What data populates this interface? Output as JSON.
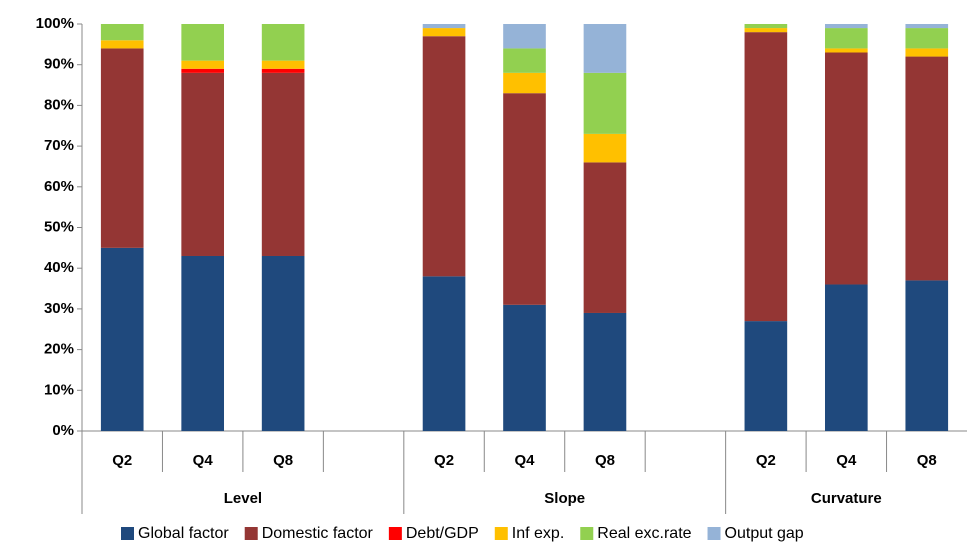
{
  "chart_data": {
    "type": "stacked-bar",
    "categories": [
      "Q2",
      "Q4",
      "Q8",
      null,
      "Q2",
      "Q4",
      "Q8",
      null,
      "Q2",
      "Q4",
      "Q8"
    ],
    "groups": [
      "Level",
      "Slope",
      "Curvature"
    ],
    "ylim": [
      0,
      100
    ],
    "yticks": [
      {
        "value": 0,
        "label": "0%"
      },
      {
        "value": 10,
        "label": "10%"
      },
      {
        "value": 20,
        "label": "20%"
      },
      {
        "value": 30,
        "label": "30%"
      },
      {
        "value": 40,
        "label": "40%"
      },
      {
        "value": 50,
        "label": "50%"
      },
      {
        "value": 60,
        "label": "60%"
      },
      {
        "value": 70,
        "label": "70%"
      },
      {
        "value": 80,
        "label": "80%"
      },
      {
        "value": 90,
        "label": "90%"
      },
      {
        "value": 100,
        "label": "100%"
      }
    ],
    "grid": false,
    "series": [
      {
        "name": "Global factor",
        "color": "#1f497d",
        "values": [
          45,
          43,
          43,
          null,
          38,
          31,
          29,
          null,
          27,
          36,
          37
        ]
      },
      {
        "name": "Domestic factor",
        "color": "#943634",
        "values": [
          49,
          45,
          45,
          null,
          59,
          52,
          37,
          null,
          71,
          57,
          55
        ]
      },
      {
        "name": "Debt/GDP",
        "color": "#ff0000",
        "values": [
          0,
          1,
          1,
          null,
          0,
          0,
          0,
          null,
          0,
          0,
          0
        ]
      },
      {
        "name": "Inf exp.",
        "color": "#ffc000",
        "values": [
          2,
          2,
          2,
          null,
          2,
          5,
          7,
          null,
          1,
          1,
          2
        ]
      },
      {
        "name": "Real exc.rate",
        "color": "#92d050",
        "values": [
          4,
          9,
          9,
          null,
          0,
          6,
          15,
          null,
          1,
          5,
          5
        ]
      },
      {
        "name": "Output gap",
        "color": "#95b3d7",
        "values": [
          0,
          0,
          0,
          null,
          1,
          6,
          12,
          null,
          0,
          1,
          1
        ]
      }
    ]
  }
}
